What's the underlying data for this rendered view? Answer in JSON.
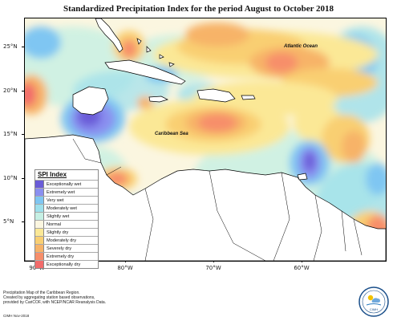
{
  "title": "Standardized Precipitation Index for the period August to October 2018",
  "map_labels": {
    "atlantic": "Atlantic Ocean",
    "caribbean": "Caribbean Sea"
  },
  "axes": {
    "lat_labels": [
      "25°N",
      "20°N",
      "15°N",
      "10°N",
      "5°N"
    ],
    "lon_labels": [
      "90°W",
      "80°W",
      "70°W",
      "60°W"
    ]
  },
  "legend": {
    "title": "SPI Index",
    "items": [
      {
        "label": "Exceptionally wet",
        "color": "#6a5cd8"
      },
      {
        "label": "Extremely wet",
        "color": "#8a8ff0"
      },
      {
        "label": "Very wet",
        "color": "#7fc6f2"
      },
      {
        "label": "Moderately wet",
        "color": "#9ee0ec"
      },
      {
        "label": "Slightly wet",
        "color": "#c6f0e4"
      },
      {
        "label": "Normal",
        "color": "#fbf6e0"
      },
      {
        "label": "Slightly dry",
        "color": "#fbe896"
      },
      {
        "label": "Moderately dry",
        "color": "#f9cf72"
      },
      {
        "label": "Severely dry",
        "color": "#f7b368"
      },
      {
        "label": "Extremely dry",
        "color": "#f78e6a"
      },
      {
        "label": "Exceptionally dry",
        "color": "#f26b6b"
      }
    ]
  },
  "footer": {
    "line1": "Precipitation Map of the Caribbean Region.",
    "line2": "Created by aggregating station based observations,",
    "line3": "provided by CariCOF, with NCEP/NCAR Reanalysis Data.",
    "credit": "CIMH Nov-2018"
  },
  "logo": {
    "text": "CIMH"
  }
}
